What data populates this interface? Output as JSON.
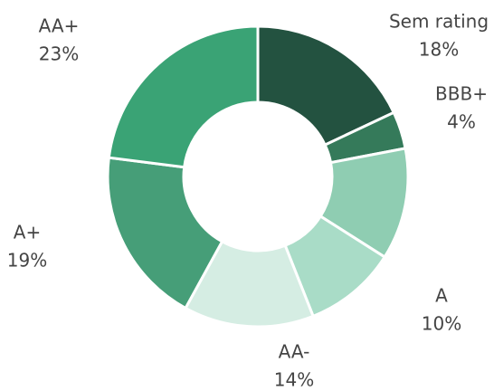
{
  "chart_data": {
    "type": "donut",
    "categories": [
      "Sem rating",
      "BBB+",
      null,
      "A",
      "AA-",
      "A+",
      "AA+"
    ],
    "values": [
      18,
      4,
      12,
      10,
      14,
      19,
      23
    ],
    "value_labels": [
      "18%",
      "4%",
      null,
      "10%",
      "14%",
      "19%",
      "23%"
    ],
    "colors": [
      "#235240",
      "#357a5a",
      "#8fcdb2",
      "#a9dcc7",
      "#d5ede3",
      "#469e78",
      "#3aa375"
    ]
  }
}
